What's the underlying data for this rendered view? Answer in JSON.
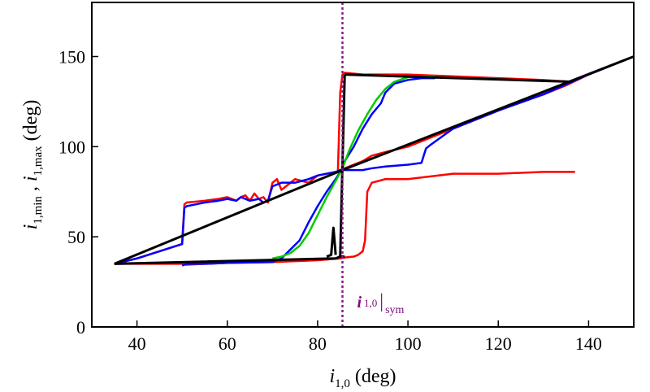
{
  "chart_data": {
    "type": "line",
    "title": "",
    "xlabel": {
      "base": "i",
      "sub": "1,0",
      "rest": " (deg)"
    },
    "ylabel": {
      "base1": "i",
      "sub1": "1,min",
      "sep": " , ",
      "base2": "i",
      "sub2": "1,max",
      "rest": " (deg)"
    },
    "xlim": [
      30,
      150
    ],
    "ylim": [
      0,
      180
    ],
    "x_ticks": [
      40,
      60,
      80,
      100,
      120,
      140
    ],
    "y_ticks": [
      0,
      50,
      100,
      150
    ],
    "grid": false,
    "reference_line": {
      "x": 85.5,
      "color": "#8b1a8b",
      "style": "dotted",
      "label": {
        "base": "i",
        "sub": "1,0",
        "bar": "|",
        "subscript": "sym"
      }
    },
    "series": [
      {
        "name": "red",
        "color": "#ff0000",
        "segments": [
          {
            "x": [
              35,
              40,
              45,
              50,
              50.5,
              51,
              55,
              58,
              60,
              62,
              63,
              64,
              65,
              66,
              67,
              68,
              69,
              70,
              71,
              72,
              75,
              78,
              80,
              82,
              84,
              85,
              85.5
            ],
            "y": [
              35,
              38,
              42,
              46,
              68,
              69,
              70,
              71,
              72,
              70,
              72,
              73,
              70,
              74,
              71,
              72,
              69,
              80,
              82,
              76,
              82,
              80,
              84,
              85,
              86,
              87,
              87.5
            ]
          },
          {
            "x": [
              85.5,
              86,
              90,
              92,
              95,
              100,
              103,
              105,
              110,
              115,
              120,
              125,
              130,
              135,
              140,
              145,
              150
            ],
            "y": [
              87.5,
              88,
              92,
              95,
              97,
              100,
              103,
              105,
              110,
              115,
              120,
              125,
              129,
              134,
              140,
              145,
              150
            ]
          },
          {
            "x": [
              35,
              40,
              50,
              51,
              55,
              60,
              70,
              80,
              85,
              86,
              88,
              89,
              90,
              90.5,
              91,
              92,
              95,
              100,
              110,
              120,
              130,
              137
            ],
            "y": [
              35,
              35,
              35,
              34.5,
              35,
              35.5,
              36,
              37,
              38,
              38.5,
              39,
              40,
              42,
              48,
              75,
              80,
              82,
              82,
              85,
              85,
              86,
              86
            ]
          },
          {
            "x": [
              84.5,
              85,
              85.5,
              86,
              90,
              95,
              100,
              110,
              120,
              130,
              136
            ],
            "y": [
              87,
              130,
              140,
              141,
              140,
              140,
              140,
              139,
              138,
              137,
              136
            ]
          }
        ]
      },
      {
        "name": "blue",
        "color": "#0000ff",
        "segments": [
          {
            "x": [
              35,
              40,
              45,
              50,
              50.5,
              51,
              55,
              58,
              60,
              62,
              63,
              65,
              67,
              68,
              69,
              70,
              72,
              75,
              78,
              80,
              82,
              84,
              85,
              85.5
            ],
            "y": [
              35,
              38,
              42,
              46,
              66,
              67,
              69,
              70,
              71,
              70,
              72,
              70,
              71,
              69,
              70,
              78,
              80,
              80,
              82,
              84,
              85,
              86,
              87,
              87.5
            ]
          },
          {
            "x": [
              85.5,
              86,
              90,
              92,
              95,
              100,
              103,
              104,
              105,
              110,
              120,
              130,
              140,
              150
            ],
            "y": [
              87.5,
              87,
              87,
              88,
              89,
              90,
              91,
              99,
              101,
              110,
              120,
              129,
              140,
              150
            ]
          },
          {
            "x": [
              50,
              51,
              55,
              60,
              70,
              72,
              74,
              76,
              78,
              80,
              82,
              84,
              85,
              85.5,
              86,
              88,
              90,
              92,
              94,
              95,
              97,
              100,
              103,
              106
            ],
            "y": [
              34,
              35,
              35,
              35.5,
              36,
              38,
              43,
              48,
              58,
              67,
              75,
              82,
              86,
              88,
              92,
              100,
              110,
              118,
              124,
              130,
              135,
              137,
              138,
              138
            ]
          }
        ]
      },
      {
        "name": "green",
        "color": "#00cc00",
        "segments": [
          {
            "x": [
              70,
              72,
              74,
              76,
              78,
              80,
              82,
              84,
              85.5,
              87,
              89,
              91,
              93,
              95,
              97,
              100,
              103,
              106
            ],
            "y": [
              38,
              39,
              41,
              45,
              52,
              62,
              72,
              81,
              88,
              98,
              109,
              118,
              126,
              132,
              136,
              138.5,
              139,
              139
            ]
          }
        ]
      },
      {
        "name": "black",
        "color": "#000000",
        "segments": [
          {
            "x": [
              35,
              85.5,
              150
            ],
            "y": [
              35,
              87,
              150
            ]
          },
          {
            "x": [
              35,
              84,
              85,
              86
            ],
            "y": [
              35,
              38,
              39,
              39
            ]
          },
          {
            "x": [
              85,
              85.5,
              86
            ],
            "y": [
              39,
              90,
              140
            ]
          },
          {
            "x": [
              86,
              136
            ],
            "y": [
              140,
              136
            ]
          },
          {
            "x": [
              82,
              83,
              83.5,
              84
            ],
            "y": [
              39,
              40,
              55,
              40
            ]
          }
        ]
      }
    ]
  }
}
